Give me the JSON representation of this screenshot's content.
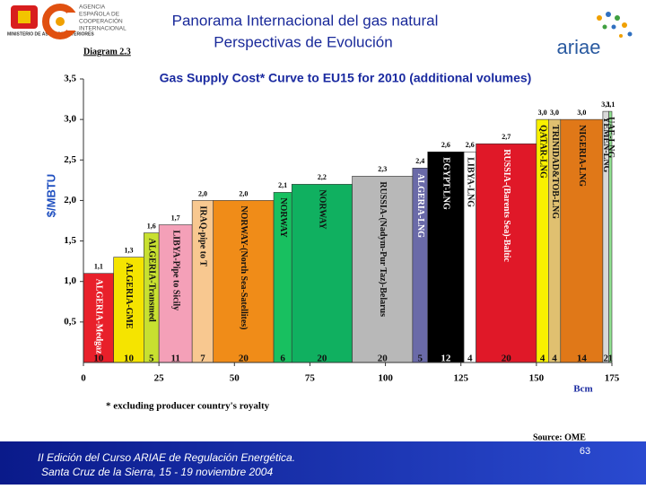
{
  "header": {
    "title": "Panorama Internacional del gas natural",
    "subtitle": "Perspectivas de Evolución",
    "ministry": "MINISTERIO DE ASUNTOS EXTERIORES",
    "agency": [
      "AGENCIA",
      "ESPAÑOLA DE",
      "COOPERACIÓN",
      "INTERNACIONAL"
    ],
    "logo_right": "ariae"
  },
  "chart_data": {
    "type": "cost-curve",
    "diagram": "Diagram 2.3",
    "title": "Gas Supply Cost* Curve  to EU15 for 2010 (additional volumes)",
    "y_label": "$/MBTU",
    "x_label": "Bcm",
    "categories": [
      "ALGERIA-Medgaz",
      "ALGERIA-GME",
      "ALGERIA-Transmed",
      "LIBYA-Pipe to Sicily",
      "IRAQ-pipe to T",
      "NORWAY-(North Sea-Satellites)",
      "NORWAY",
      "NORWAY",
      "RUSSIA-(Nadym-Pur Taz)-Belarus",
      "ALGERIA-LNG",
      "EGYPT-LNG",
      "LIBYA-LNG",
      "RUSSIA-(Barents Sea)-Baltic",
      "QATAR-LNG",
      "TRINIDAD&TOB-LNG",
      "NIGERIA-LNG",
      "YEMEN-LNG",
      "UAE-LNG"
    ],
    "values": [
      1.1,
      1.3,
      1.6,
      1.7,
      2.0,
      2.0,
      2.1,
      2.2,
      2.3,
      2.4,
      2.6,
      2.6,
      2.7,
      3.0,
      3.0,
      3.0,
      3.1,
      3.1
    ],
    "value_labels": [
      "1,1",
      "1,3",
      "1,6",
      "1,7",
      "2,0",
      "2,0",
      "2,1",
      "2,2",
      "2,3",
      "2,4",
      "2,6",
      "2,6",
      "2,7",
      "3,0",
      "3,0",
      "3,0",
      "3,1",
      "3,1"
    ],
    "widths": [
      10,
      10,
      5,
      11,
      7,
      20,
      6,
      20,
      20,
      5,
      12,
      4,
      20,
      4,
      4,
      14,
      2,
      1
    ],
    "colors": [
      "#e8202a",
      "#f5e400",
      "#c8e030",
      "#f4a0b8",
      "#f8c890",
      "#f08c18",
      "#18c060",
      "#10b060",
      "#b8b8b8",
      "#6a6aa8",
      "#000000",
      "#ffffff",
      "#e01828",
      "#f8f000",
      "#e0c070",
      "#e07818",
      "#d8d8d8",
      "#90e090"
    ],
    "xlim": [
      0,
      175
    ],
    "xticks": [
      0,
      25,
      50,
      75,
      100,
      125,
      150,
      175
    ],
    "ylim": [
      0,
      3.5
    ],
    "yticks": [
      {
        "value": 0.5,
        "label": "0,5"
      },
      {
        "value": 1.0,
        "label": "1,0"
      },
      {
        "value": 1.5,
        "label": "1,5"
      },
      {
        "value": 2.0,
        "label": "2,0"
      },
      {
        "value": 2.5,
        "label": "2,5"
      },
      {
        "value": 3.0,
        "label": "3,0"
      },
      {
        "value": 3.5,
        "label": "3,5"
      }
    ],
    "footnote": "* excluding producer country's royalty",
    "source": "Source: OME"
  },
  "footer": {
    "line1": "II Edición del Curso ARIAE de Regulación Energética.",
    "line2": "Santa Cruz de la Sierra, 15 - 19 noviembre 2004",
    "page": "63"
  }
}
